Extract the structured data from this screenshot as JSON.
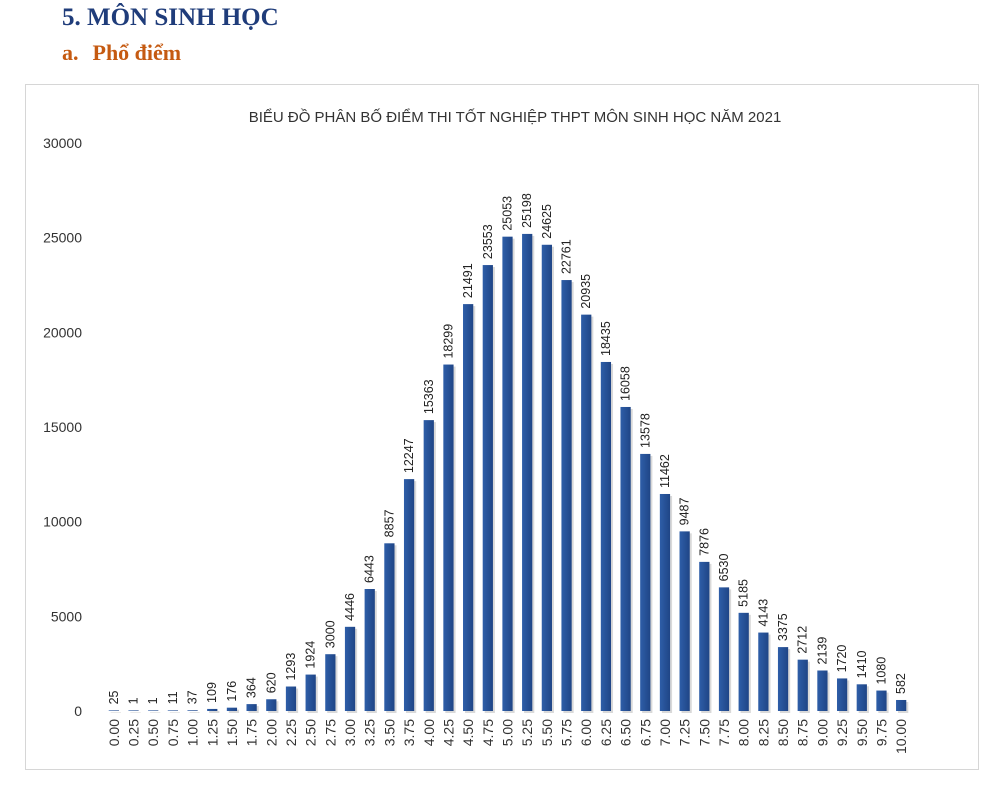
{
  "section": {
    "title": "5.  MÔN SINH HỌC",
    "sub_num": "a.",
    "sub_title": "Phổ điểm"
  },
  "colors": {
    "bar": "#2e5ea8",
    "bar_dark": "#1f4586",
    "heading": "#1f3c7a",
    "subheading": "#c55a11"
  },
  "chart_data": {
    "type": "bar",
    "title": "BIỂU ĐỒ PHÂN BỐ ĐIỂM THI TỐT NGHIỆP THPT MÔN SINH HỌC NĂM 2021",
    "xlabel": "",
    "ylabel": "",
    "ylim": [
      0,
      30000
    ],
    "yticks": [
      0,
      5000,
      10000,
      15000,
      20000,
      25000,
      30000
    ],
    "grid": false,
    "categories": [
      "0.00",
      "0.25",
      "0.50",
      "0.75",
      "1.00",
      "1.25",
      "1.50",
      "1.75",
      "2.00",
      "2.25",
      "2.50",
      "2.75",
      "3.00",
      "3.25",
      "3.50",
      "3.75",
      "4.00",
      "4.25",
      "4.50",
      "4.75",
      "5.00",
      "5.25",
      "5.50",
      "5.75",
      "6.00",
      "6.25",
      "6.50",
      "6.75",
      "7.00",
      "7.25",
      "7.50",
      "7.75",
      "8.00",
      "8.25",
      "8.50",
      "8.75",
      "9.00",
      "9.25",
      "9.50",
      "9.75",
      "10.00"
    ],
    "values": [
      25,
      1,
      1,
      11,
      37,
      109,
      176,
      364,
      620,
      1293,
      1924,
      3000,
      4446,
      6443,
      8857,
      12247,
      15363,
      18299,
      21491,
      23553,
      25053,
      25198,
      24625,
      22761,
      20935,
      18435,
      16058,
      13578,
      11462,
      9487,
      7876,
      6530,
      5185,
      4143,
      3375,
      2712,
      2139,
      1720,
      1410,
      1080,
      582
    ]
  }
}
